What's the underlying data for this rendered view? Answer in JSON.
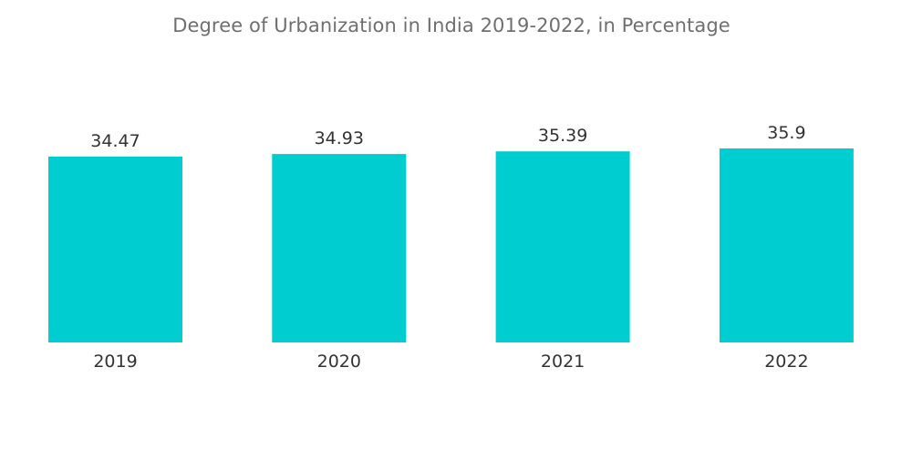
{
  "chart_data": {
    "type": "bar",
    "title": "Degree of Urbanization in India 2019-2022, in Percentage",
    "categories": [
      "2019",
      "2020",
      "2021",
      "2022"
    ],
    "values": [
      34.47,
      34.93,
      35.39,
      35.9
    ],
    "xlabel": "",
    "ylabel": "",
    "grid": false,
    "legend": "none",
    "bar_color": "#00cdd0"
  }
}
